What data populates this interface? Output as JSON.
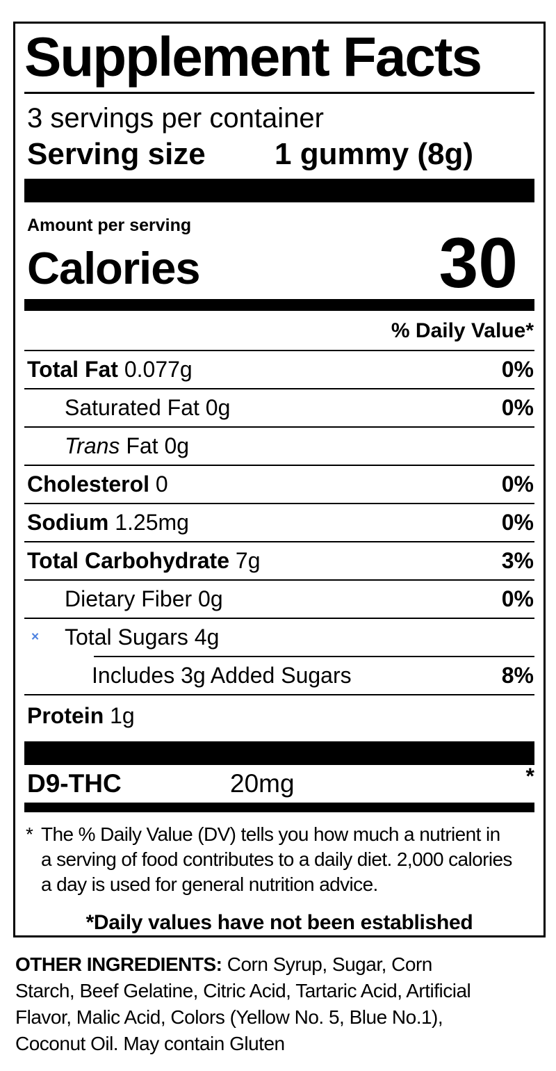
{
  "label": {
    "title": "Supplement Facts",
    "servings_per_container": "3 servings per container",
    "serving_size_label": "Serving size",
    "serving_size_value": "1 gummy (8g)",
    "amount_per_serving": "Amount per serving",
    "calories_label": "Calories",
    "calories_value": "30",
    "daily_value_header": "% Daily Value*",
    "colors": {
      "text": "#000000",
      "rule": "#000000",
      "marker_blue": "#4d82e0"
    },
    "rows": [
      {
        "parts": [
          {
            "t": "Total Fat",
            "s": "b"
          },
          {
            "t": " 0.077g",
            "s": "r"
          }
        ],
        "dv": "0%",
        "indent": 0,
        "sep": "full"
      },
      {
        "parts": [
          {
            "t": "Saturated Fat 0g",
            "s": "r"
          }
        ],
        "dv": "0%",
        "indent": 1,
        "sep": "full"
      },
      {
        "parts": [
          {
            "t": "Trans",
            "s": "i"
          },
          {
            "t": " Fat 0g",
            "s": "r"
          }
        ],
        "dv": "",
        "indent": 1,
        "sep": "full"
      },
      {
        "parts": [
          {
            "t": "Cholesterol",
            "s": "b"
          },
          {
            "t": " 0",
            "s": "r"
          }
        ],
        "dv": "0%",
        "indent": 0,
        "sep": "full"
      },
      {
        "parts": [
          {
            "t": "Sodium",
            "s": "b"
          },
          {
            "t": " 1.25mg",
            "s": "r"
          }
        ],
        "dv": "0%",
        "indent": 0,
        "sep": "full"
      },
      {
        "parts": [
          {
            "t": "Total Carbohydrate",
            "s": "b"
          },
          {
            "t": " 7g",
            "s": "r"
          }
        ],
        "dv": "3%",
        "indent": 0,
        "sep": "full"
      },
      {
        "parts": [
          {
            "t": "Dietary Fiber 0g",
            "s": "r"
          }
        ],
        "dv": "0%",
        "indent": 1,
        "sep": "full"
      },
      {
        "parts": [
          {
            "t": "Total Sugars 4g",
            "s": "r"
          }
        ],
        "dv": "",
        "indent": 1,
        "sep": "full",
        "marker": "blue-x"
      },
      {
        "parts": [
          {
            "t": "Includes 3g Added Sugars",
            "s": "r"
          }
        ],
        "dv": "8%",
        "indent": 2,
        "sep": "partial"
      },
      {
        "parts": [
          {
            "t": "Protein",
            "s": "b"
          },
          {
            "t": " 1g",
            "s": "r"
          }
        ],
        "dv": "",
        "indent": 0,
        "sep": "full",
        "protein": true
      }
    ],
    "thc_row": {
      "name": "D9-THC",
      "amount": "20mg",
      "dv_mark": "*"
    },
    "footnote": {
      "asterisk": "*",
      "lines": [
        "The % Daily Value (DV) tells you how much a nutrient in",
        "a serving of food contributes to a daily diet. 2,000 calories",
        "a day is used for general nutrition advice."
      ]
    },
    "established_note": "*Daily values have not been established"
  },
  "other_ingredients": {
    "lines": [
      [
        {
          "t": "OTHER INGREDIENTS:",
          "s": "b"
        },
        {
          "t": " Corn Syrup, Sugar, Corn",
          "s": "r"
        }
      ],
      [
        {
          "t": "Starch, Beef Gelatine, Citric Acid, Tartaric Acid, Artificial",
          "s": "r"
        }
      ],
      [
        {
          "t": "Flavor, Malic Acid, Colors (Yellow No. 5, Blue No.1),",
          "s": "r"
        }
      ],
      [
        {
          "t": "Coconut Oil. May contain Gluten",
          "s": "r"
        }
      ]
    ]
  }
}
